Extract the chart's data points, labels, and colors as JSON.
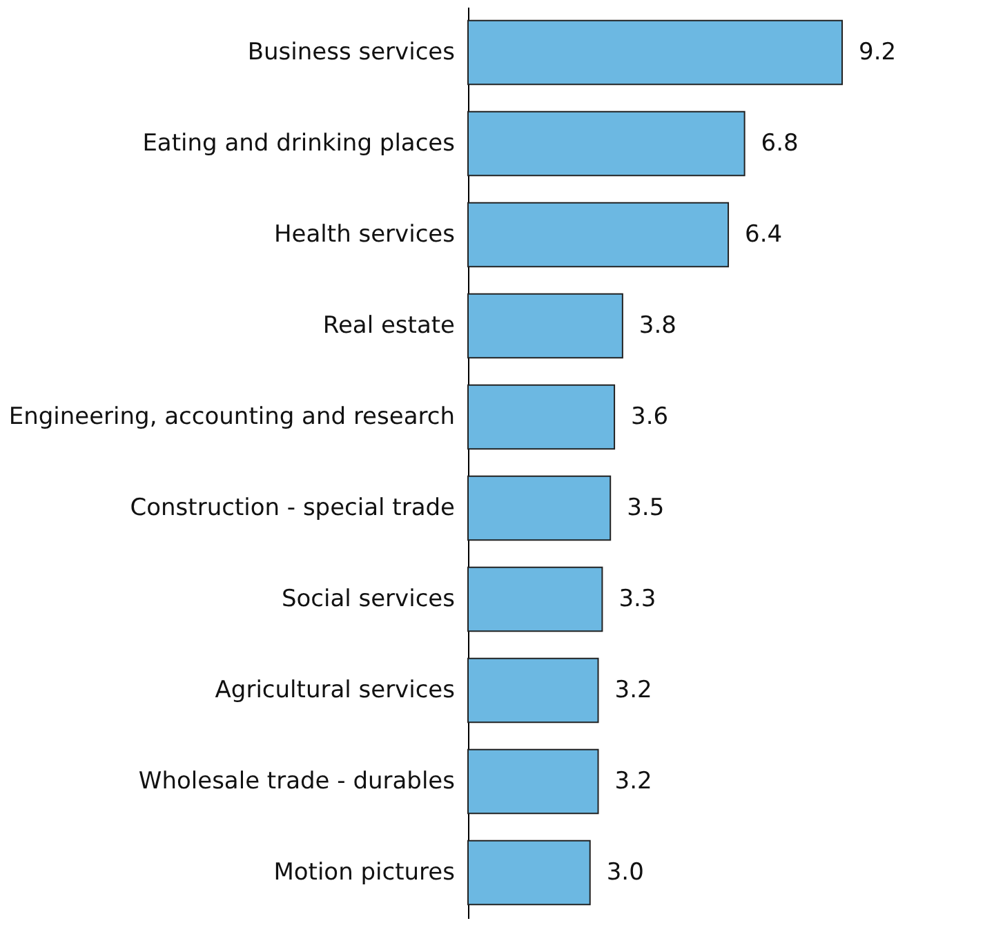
{
  "chart_data": {
    "type": "bar",
    "orientation": "horizontal",
    "categories": [
      "Business services",
      "Eating and drinking places",
      "Health services",
      "Real estate",
      "Engineering, accounting and research",
      "Construction - special trade",
      "Social services",
      "Agricultural services",
      "Wholesale trade - durables",
      "Motion pictures"
    ],
    "values": [
      9.2,
      6.8,
      6.4,
      3.8,
      3.6,
      3.5,
      3.3,
      3.2,
      3.2,
      3.0
    ],
    "value_labels": [
      "9.2",
      "6.8",
      "6.4",
      "3.8",
      "3.6",
      "3.5",
      "3.3",
      "3.2",
      "3.2",
      "3.0"
    ],
    "color": "#6cb8e2"
  }
}
